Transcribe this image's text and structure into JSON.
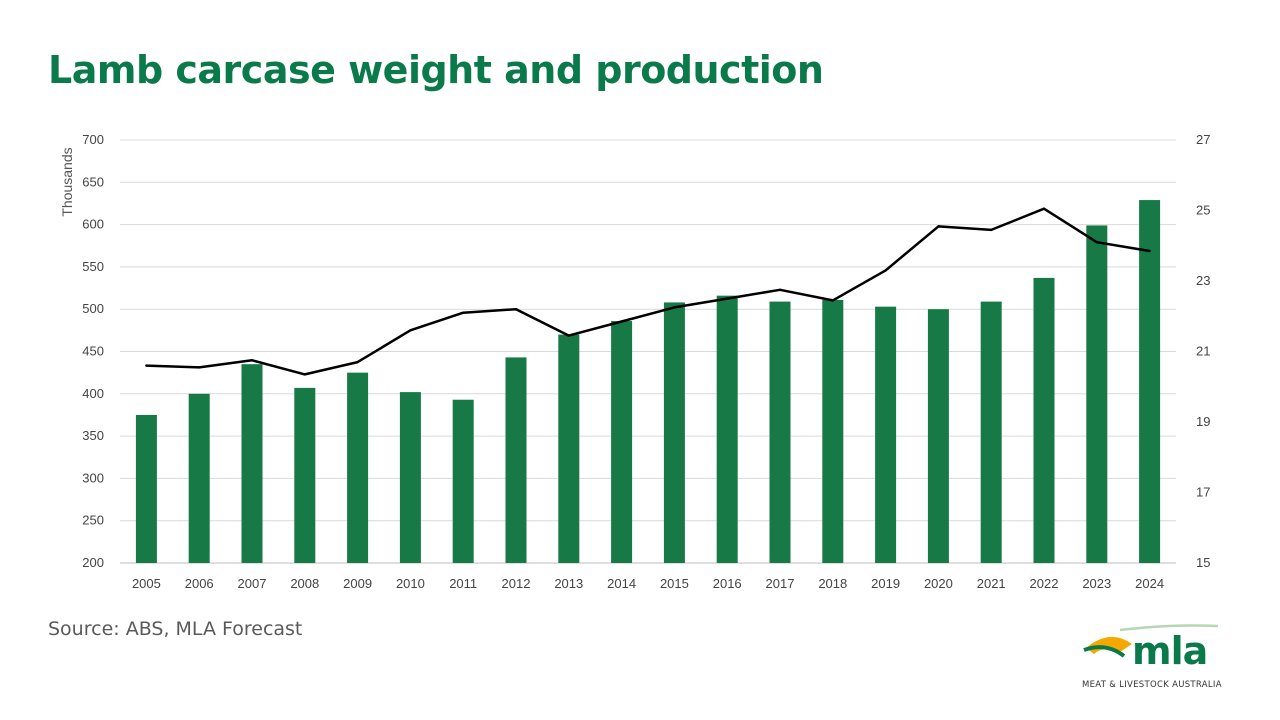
{
  "title": "Lamb carcase weight and production",
  "source": "Source: ABS, MLA Forecast",
  "logo": {
    "wordmark": "mla",
    "tagline": "MEAT & LIVESTOCK AUSTRALIA"
  },
  "colors": {
    "title": "#0a7a4a",
    "bars": "#177a46",
    "line": "#000000",
    "grid": "#d9d9d9"
  },
  "chart_data": {
    "type": "bar",
    "categories": [
      "2005",
      "2006",
      "2007",
      "2008",
      "2009",
      "2010",
      "2011",
      "2012",
      "2013",
      "2014",
      "2015",
      "2016",
      "2017",
      "2018",
      "2019",
      "2020",
      "2021",
      "2022",
      "2023",
      "2024"
    ],
    "series": [
      {
        "type": "bar",
        "axis": "left",
        "values": [
          375,
          400,
          435,
          407,
          425,
          402,
          393,
          443,
          470,
          486,
          508,
          516,
          509,
          511,
          503,
          500,
          509,
          537,
          599,
          629
        ]
      },
      {
        "type": "line",
        "axis": "right",
        "values": [
          20.6,
          20.55,
          20.75,
          20.35,
          20.7,
          21.6,
          22.1,
          22.2,
          21.45,
          21.85,
          22.25,
          22.5,
          22.75,
          22.45,
          23.3,
          24.55,
          24.45,
          25.05,
          24.1,
          23.85
        ]
      }
    ],
    "ylabel": "Thousands",
    "ylim": [
      200,
      700
    ],
    "yticks": [
      "200",
      "250",
      "300",
      "350",
      "400",
      "450",
      "500",
      "550",
      "600",
      "650",
      "700"
    ],
    "y2lim": [
      15,
      27
    ],
    "y2ticks": [
      "15",
      "17",
      "19",
      "21",
      "23",
      "25",
      "27"
    ],
    "grid": true
  }
}
